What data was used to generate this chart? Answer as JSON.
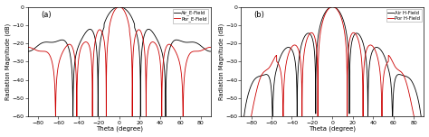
{
  "title_a": "(a)",
  "title_b": "(b)",
  "xlabel": "Theta (degree)",
  "ylabel": "Radiation Magnitude (dB)",
  "xlim": [
    -90,
    90
  ],
  "ylim": [
    -60,
    0
  ],
  "xticks": [
    -80,
    -60,
    -40,
    -20,
    0,
    20,
    40,
    60,
    80
  ],
  "yticks": [
    0,
    -10,
    -20,
    -30,
    -40,
    -50,
    -60
  ],
  "legend_a": [
    "Air_E-Field",
    "Por_E-Field"
  ],
  "legend_b": [
    "Air H-Field",
    "Por H-Field"
  ],
  "line_color_black": "#000000",
  "line_color_red": "#cc0000",
  "background": "#ffffff"
}
